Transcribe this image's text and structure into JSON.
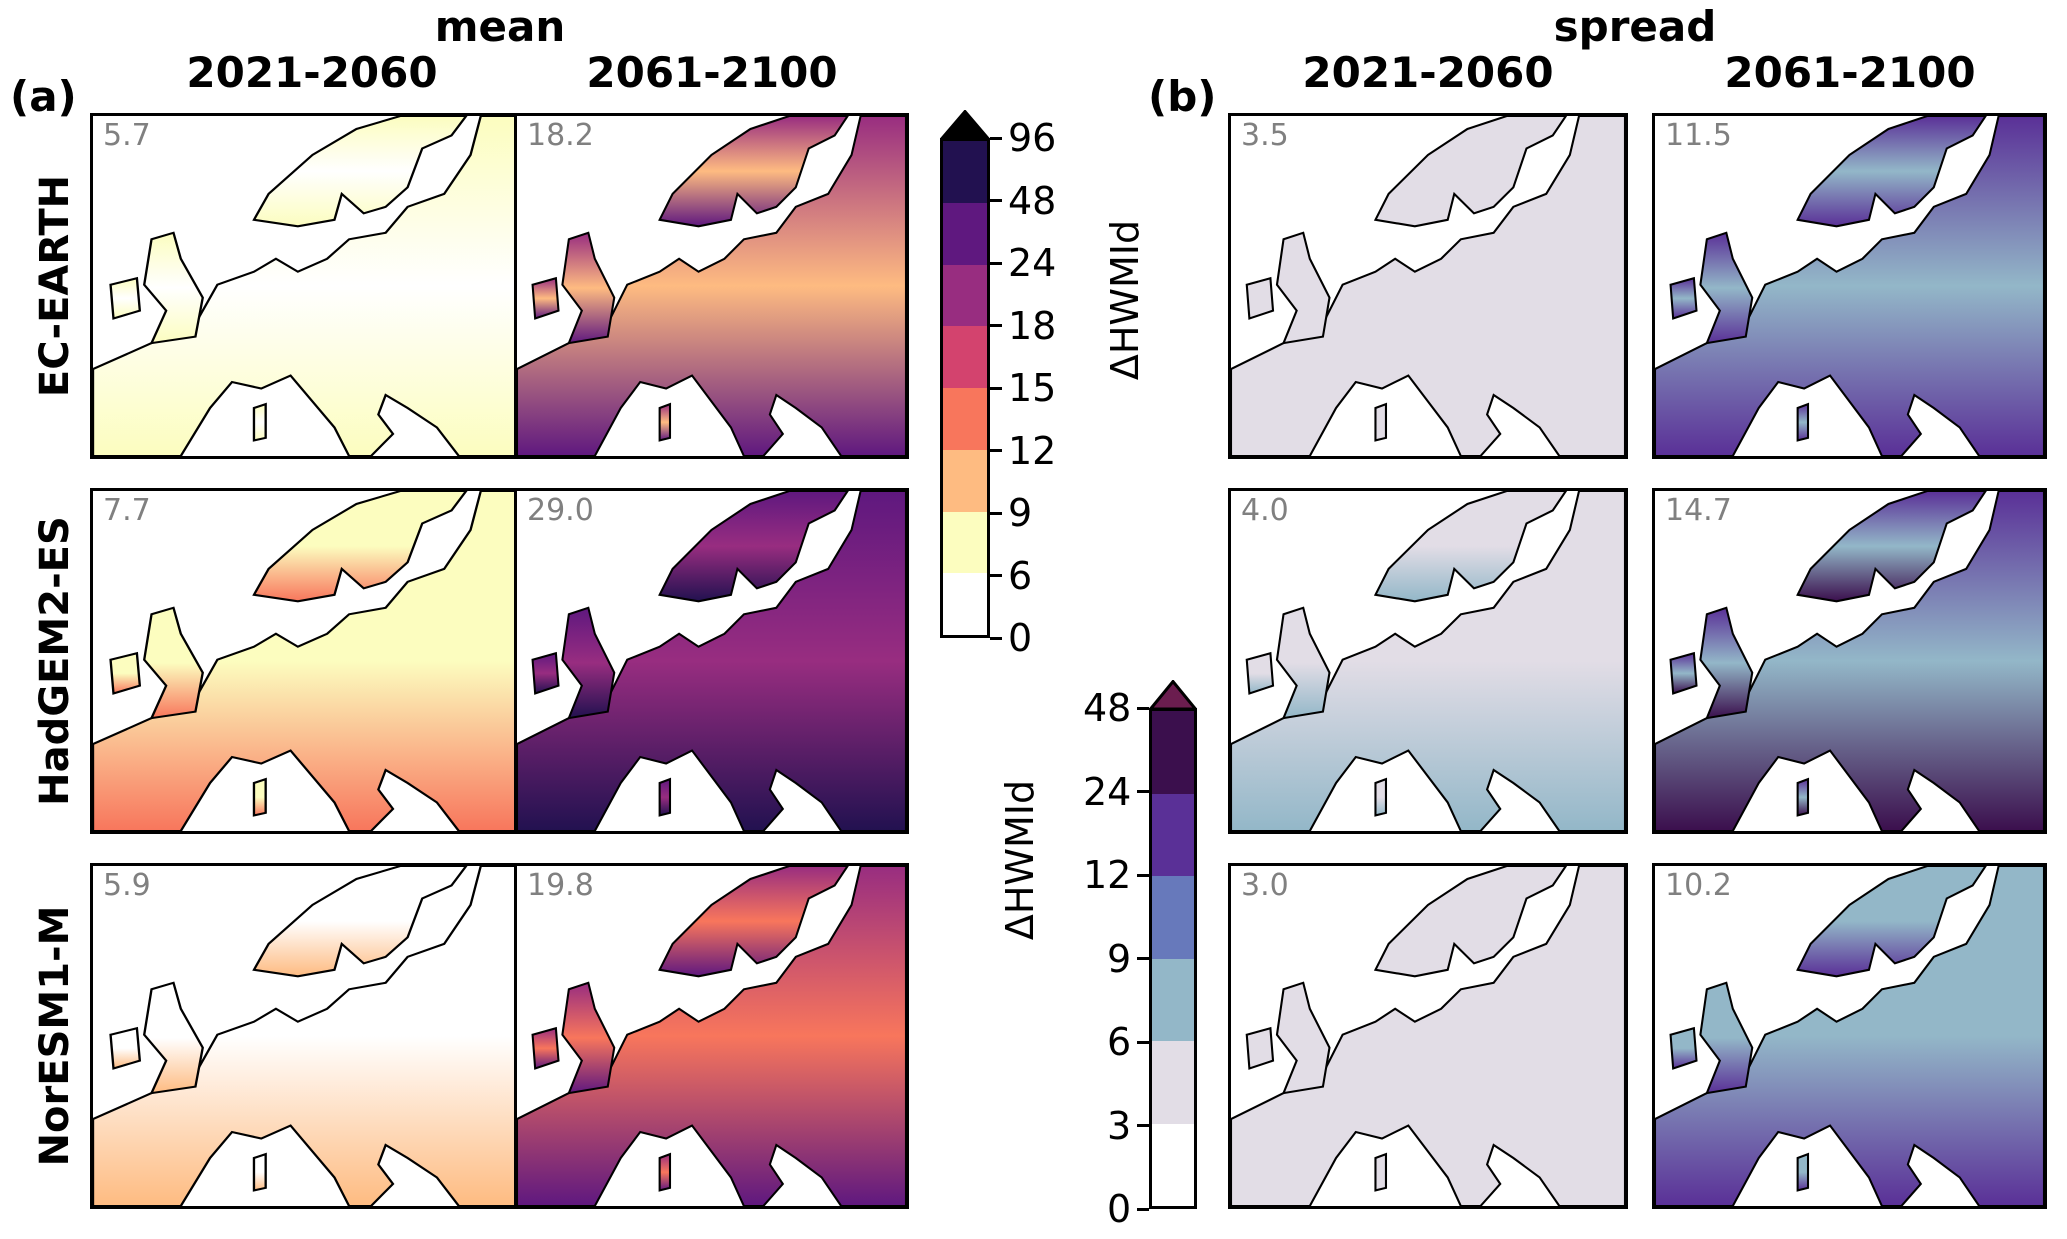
{
  "figure": {
    "label_a": "(a)",
    "label_b": "(b)",
    "group_a_title": "mean",
    "group_b_title": "spread",
    "column_titles": [
      "2021-2060",
      "2061-2100",
      "2021-2060",
      "2061-2100"
    ],
    "row_labels": [
      "EC-EARTH",
      "HadGEM2-ES",
      "NorESM1-M"
    ]
  },
  "chart_data": {
    "type": "heatmap",
    "description_kind": "map panels of Europe",
    "panels": [
      {
        "group": "mean",
        "model": "EC-EARTH",
        "period": "2021-2060",
        "value": "5.7",
        "colors": [
          "#fcfdbf",
          "#ffffff",
          "#fcfdbf"
        ]
      },
      {
        "group": "mean",
        "model": "EC-EARTH",
        "period": "2061-2100",
        "value": "18.2",
        "colors": [
          "#982d80",
          "#febb81",
          "#5f187f"
        ]
      },
      {
        "group": "spread",
        "model": "EC-EARTH",
        "period": "2021-2060",
        "value": "3.5",
        "colors": [
          "#e2dde6",
          "#e2dde6",
          "#e2dde6"
        ]
      },
      {
        "group": "spread",
        "model": "EC-EARTH",
        "period": "2061-2100",
        "value": "11.5",
        "colors": [
          "#5a3097",
          "#93b7c8",
          "#5a3097"
        ]
      },
      {
        "group": "mean",
        "model": "HadGEM2-ES",
        "period": "2021-2060",
        "value": "7.7",
        "colors": [
          "#fcfdbf",
          "#fcfdbf",
          "#f8765c"
        ]
      },
      {
        "group": "mean",
        "model": "HadGEM2-ES",
        "period": "2061-2100",
        "value": "29.0",
        "colors": [
          "#5f187f",
          "#982d80",
          "#221150"
        ]
      },
      {
        "group": "spread",
        "model": "HadGEM2-ES",
        "period": "2021-2060",
        "value": "4.0",
        "colors": [
          "#e2dde6",
          "#e2dde6",
          "#93b7c8"
        ]
      },
      {
        "group": "spread",
        "model": "HadGEM2-ES",
        "period": "2061-2100",
        "value": "14.7",
        "colors": [
          "#5a3097",
          "#93b7c8",
          "#3b0f4d"
        ]
      },
      {
        "group": "mean",
        "model": "NorESM1-M",
        "period": "2021-2060",
        "value": "5.9",
        "colors": [
          "#ffffff",
          "#ffffff",
          "#febb81"
        ]
      },
      {
        "group": "mean",
        "model": "NorESM1-M",
        "period": "2061-2100",
        "value": "19.8",
        "colors": [
          "#982d80",
          "#f8765c",
          "#5f187f"
        ]
      },
      {
        "group": "spread",
        "model": "NorESM1-M",
        "period": "2021-2060",
        "value": "3.0",
        "colors": [
          "#e2dde6",
          "#e2dde6",
          "#e2dde6"
        ]
      },
      {
        "group": "spread",
        "model": "NorESM1-M",
        "period": "2061-2100",
        "value": "10.2",
        "colors": [
          "#93b7c8",
          "#93b7c8",
          "#5a3097"
        ]
      }
    ],
    "colorbars": [
      {
        "label": "ΔHWMId",
        "ticks": [
          "0",
          "6",
          "9",
          "12",
          "15",
          "18",
          "24",
          "48",
          "96"
        ],
        "colors": [
          "#ffffff",
          "#fcfdbf",
          "#febb81",
          "#f8765c",
          "#d3436e",
          "#982d80",
          "#5f187f",
          "#221150"
        ],
        "extend_color": "#000000"
      },
      {
        "label": "ΔHWMId",
        "ticks": [
          "0",
          "3",
          "6",
          "9",
          "12",
          "24",
          "48"
        ],
        "colors": [
          "#ffffff",
          "#e2dde6",
          "#93b7c8",
          "#6779bb",
          "#5a3097",
          "#3b0f4d"
        ],
        "extend_color": "#6b1d4f"
      }
    ]
  }
}
